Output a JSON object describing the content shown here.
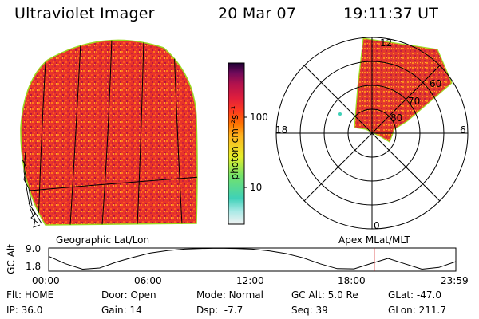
{
  "header": {
    "instrument": "Ultraviolet Imager",
    "date": "20 Mar 07",
    "time": "19:11:37 UT"
  },
  "colorbar": {
    "label": "photon cm⁻²s⁻¹",
    "ticks": [
      "100",
      "10"
    ],
    "scale": "log",
    "colors": [
      "#f2f2f2",
      "#a9e9e6",
      "#3fd1b8",
      "#74e26a",
      "#e6ee2a",
      "#ffb21f",
      "#ff7400",
      "#ff3c1e",
      "#e01e3c",
      "#b3124d",
      "#6e0a5a",
      "#1d0033"
    ]
  },
  "panels": {
    "left_label": "Geographic Lat/Lon",
    "right_label": "Apex MLat/MLT",
    "polar": {
      "mlt_labels": {
        "top": "12",
        "left": "18",
        "right": "6",
        "bottom": "0"
      },
      "lat_labels": [
        "60",
        "70",
        "80"
      ]
    }
  },
  "altitude_plot": {
    "ylabel": "GC Alt",
    "y_ticks": [
      "9.0",
      "1.8"
    ],
    "x_ticks": [
      "00:00",
      "06:00",
      "12:00",
      "18:00",
      "23:59"
    ],
    "series": {
      "hours": [
        0,
        1,
        2,
        3,
        4,
        5,
        6,
        7,
        8,
        9,
        10,
        11,
        12,
        13,
        14,
        15,
        16,
        17,
        18,
        19,
        20,
        21,
        22,
        23,
        23.98
      ],
      "alt_re": [
        6.5,
        4.0,
        2.2,
        2.6,
        4.6,
        6.2,
        7.6,
        8.4,
        8.9,
        9.1,
        9.2,
        9.1,
        8.9,
        8.3,
        7.4,
        6.0,
        4.0,
        2.4,
        2.3,
        4.1,
        5.8,
        4.0,
        2.2,
        2.8,
        4.7
      ]
    },
    "current_hour": 19.19,
    "marker_color": "#cc0000"
  },
  "status": {
    "flt": {
      "label": "Flt:",
      "value": "HOME"
    },
    "ip": {
      "label": "IP:",
      "value": "36.0"
    },
    "door": {
      "label": "Door:",
      "value": "Open"
    },
    "gain": {
      "label": "Gain:",
      "value": "14"
    },
    "mode": {
      "label": "Mode:",
      "value": "Normal"
    },
    "dsp": {
      "label": "Dsp:",
      "value": "-7.7"
    },
    "gc_alt": {
      "label": "GC Alt:",
      "value": "5.0 Re"
    },
    "seq": {
      "label": "Seq:",
      "value": "39"
    },
    "glat": {
      "label": "GLat:",
      "value": "-47.0"
    },
    "glon": {
      "label": "GLon:",
      "value": "211.7"
    }
  }
}
